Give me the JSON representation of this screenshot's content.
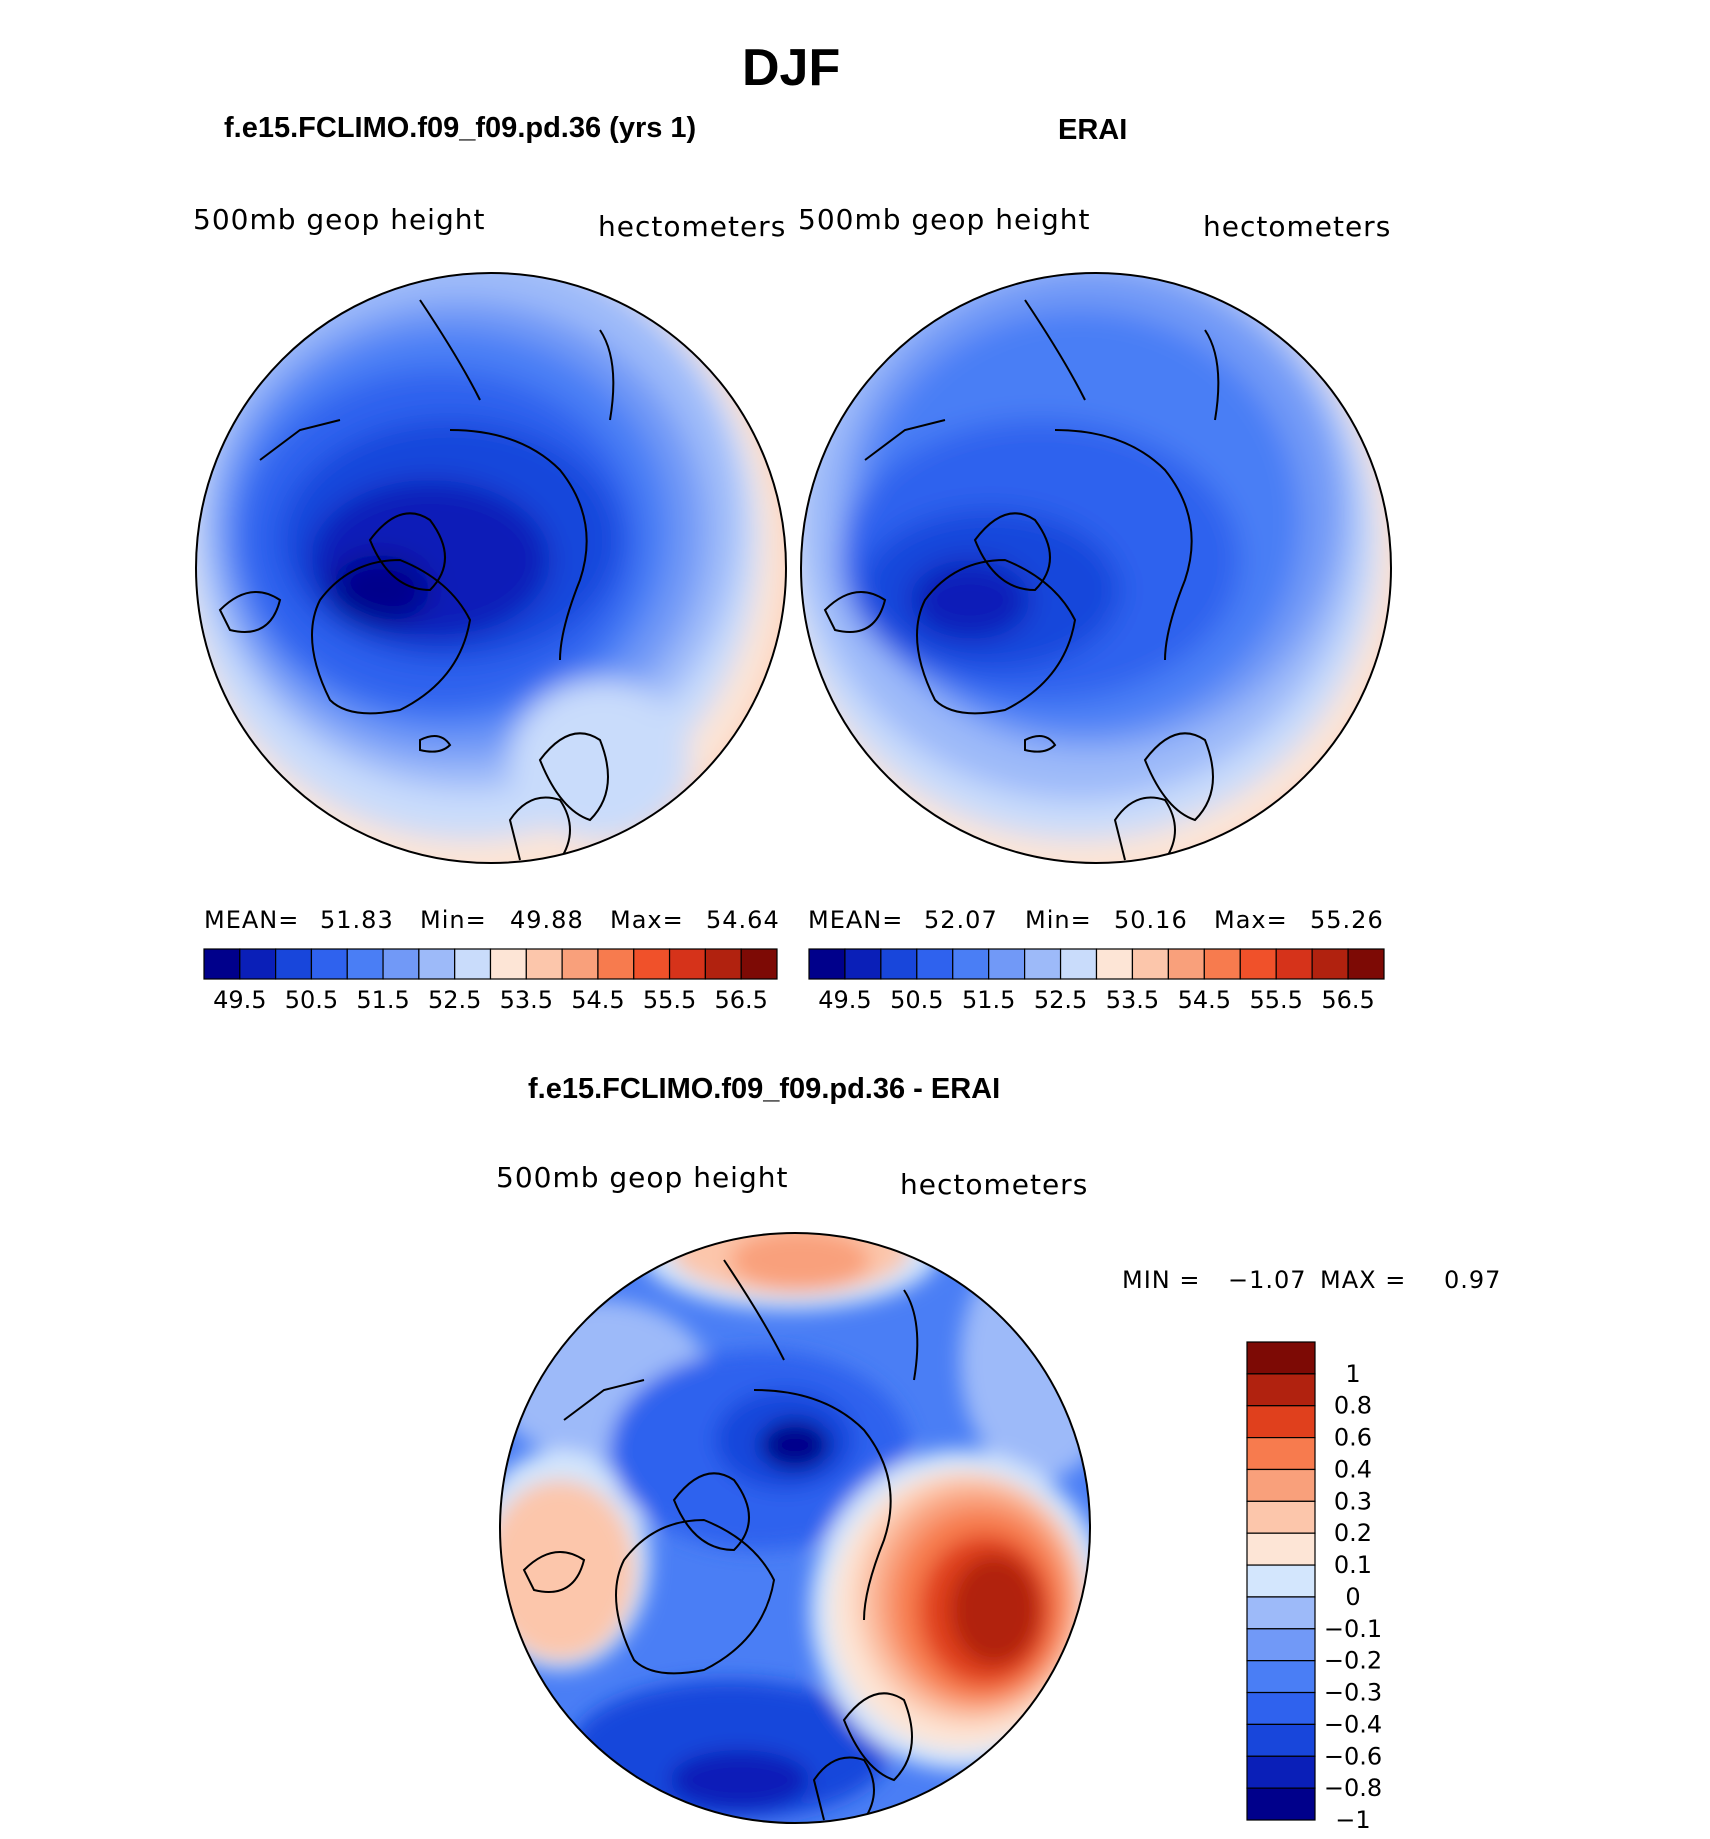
{
  "page": {
    "season": "DJF"
  },
  "panels": {
    "model": {
      "title": "f.e15.FCLIMO.f09_f09.pd.36 (yrs 1)",
      "variable": "500mb  geop  height",
      "units": "hectometers",
      "stats": {
        "mean_label": "MEAN=",
        "mean": "51.83",
        "min_label": "Min=",
        "min": "49.88",
        "max_label": "Max=",
        "max": "54.64"
      }
    },
    "obs": {
      "title": "ERAI",
      "variable": "500mb  geop  height",
      "units": "hectometers",
      "stats": {
        "mean_label": "MEAN=",
        "mean": "52.07",
        "min_label": "Min=",
        "min": "50.16",
        "max_label": "Max=",
        "max": "55.26"
      }
    },
    "diff": {
      "title": "f.e15.FCLIMO.f09_f09.pd.36 - ERAI",
      "variable": "500mb  geop  height",
      "units": "hectometers",
      "minmax": {
        "min_label": "MIN =",
        "min": "−1.07",
        "max_label": "MAX =",
        "max": "0.97"
      }
    }
  },
  "colorbars": {
    "abs": {
      "colors": [
        "#00008b",
        "#0a1fb8",
        "#1846db",
        "#2f62ee",
        "#4a7ef5",
        "#7199f7",
        "#9dbaf9",
        "#c9dcfb",
        "#fde5d6",
        "#fcc6ab",
        "#f9a07b",
        "#f77b4e",
        "#f0512a",
        "#d6331a",
        "#b1220f",
        "#7d0a05"
      ],
      "tick_labels": [
        "49.5",
        "50.5",
        "51.5",
        "52.5",
        "53.5",
        "54.5",
        "55.5",
        "56.5"
      ]
    },
    "diff": {
      "colors": [
        "#00008b",
        "#0a1fb8",
        "#1846db",
        "#2f62ee",
        "#4a7ef5",
        "#7199f7",
        "#9dbaf9",
        "#d3e6fd",
        "#fde5d6",
        "#fcc6ab",
        "#f9a07b",
        "#f77b4e",
        "#e0401d",
        "#b1220f",
        "#7d0a05"
      ],
      "tick_labels": [
        "1",
        "0.8",
        "0.6",
        "0.4",
        "0.3",
        "0.2",
        "0.1",
        "0",
        "−0.1",
        "−0.2",
        "−0.3",
        "−0.4",
        "−0.6",
        "−0.8",
        "−1"
      ]
    }
  },
  "chart_data": [
    {
      "type": "heatmap",
      "title": "f.e15.FCLIMO.f09_f09.pd.36 (yrs 1)",
      "subtitle": "500mb  geop  height",
      "units": "hectometers",
      "projection": "north polar stereographic",
      "mean": 51.83,
      "min": 49.88,
      "max": 54.64,
      "levels": [
        49.5,
        50,
        50.5,
        51,
        51.5,
        52,
        52.5,
        53,
        53.5,
        54,
        54.5,
        55,
        55.5,
        56,
        56.5
      ]
    },
    {
      "type": "heatmap",
      "title": "ERAI",
      "subtitle": "500mb  geop  height",
      "units": "hectometers",
      "projection": "north polar stereographic",
      "mean": 52.07,
      "min": 50.16,
      "max": 55.26,
      "levels": [
        49.5,
        50,
        50.5,
        51,
        51.5,
        52,
        52.5,
        53,
        53.5,
        54,
        54.5,
        55,
        55.5,
        56,
        56.5
      ]
    },
    {
      "type": "heatmap",
      "title": "f.e15.FCLIMO.f09_f09.pd.36 - ERAI",
      "subtitle": "500mb  geop  height",
      "units": "hectometers",
      "projection": "north polar stereographic",
      "min": -1.07,
      "max": 0.97,
      "levels": [
        -1,
        -0.8,
        -0.6,
        -0.4,
        -0.3,
        -0.2,
        -0.1,
        0,
        0.1,
        0.2,
        0.3,
        0.4,
        0.6,
        0.8,
        1
      ]
    }
  ]
}
